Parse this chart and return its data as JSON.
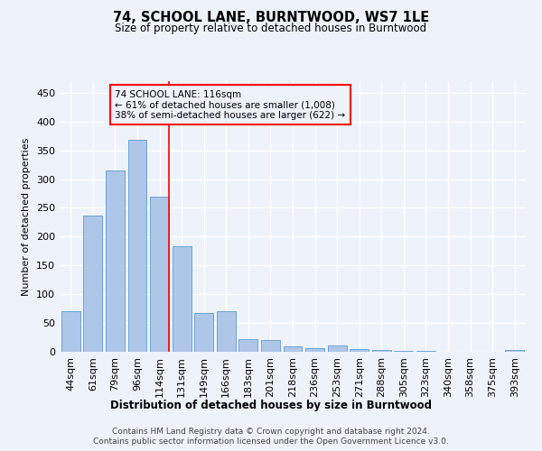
{
  "title": "74, SCHOOL LANE, BURNTWOOD, WS7 1LE",
  "subtitle": "Size of property relative to detached houses in Burntwood",
  "xlabel": "Distribution of detached houses by size in Burntwood",
  "ylabel": "Number of detached properties",
  "categories": [
    "44sqm",
    "61sqm",
    "79sqm",
    "96sqm",
    "114sqm",
    "131sqm",
    "149sqm",
    "166sqm",
    "183sqm",
    "201sqm",
    "218sqm",
    "236sqm",
    "253sqm",
    "271sqm",
    "288sqm",
    "305sqm",
    "323sqm",
    "340sqm",
    "358sqm",
    "375sqm",
    "393sqm"
  ],
  "values": [
    70,
    237,
    315,
    368,
    270,
    184,
    68,
    70,
    22,
    20,
    10,
    6,
    11,
    5,
    3,
    1,
    1,
    0,
    0,
    0,
    3
  ],
  "bar_color": "#aec6e8",
  "bar_edge_color": "#5b9bd5",
  "vline_index": 4,
  "vline_color": "red",
  "annotation_title": "74 SCHOOL LANE: 116sqm",
  "annotation_line1": "← 61% of detached houses are smaller (1,008)",
  "annotation_line2": "38% of semi-detached houses are larger (622) →",
  "annotation_box_color": "red",
  "ylim": [
    0,
    470
  ],
  "yticks": [
    0,
    50,
    100,
    150,
    200,
    250,
    300,
    350,
    400,
    450
  ],
  "footer1": "Contains HM Land Registry data © Crown copyright and database right 2024.",
  "footer2": "Contains public sector information licensed under the Open Government Licence v3.0.",
  "bg_color": "#eef2fb",
  "grid_color": "white"
}
